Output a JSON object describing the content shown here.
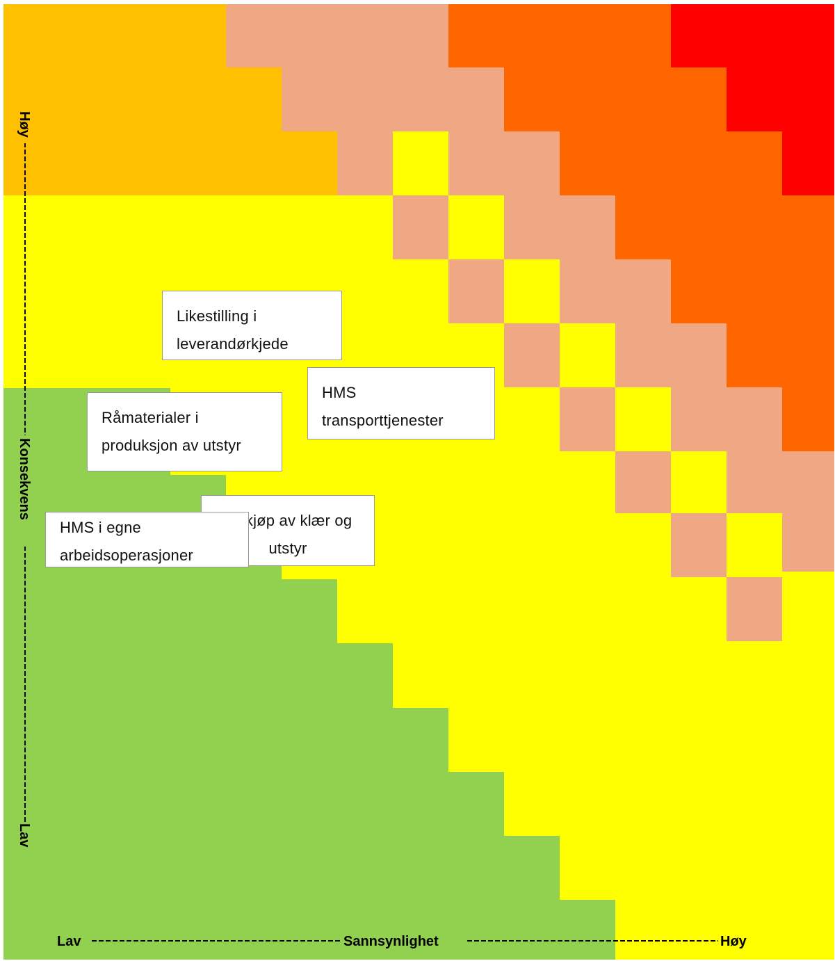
{
  "colors": {
    "green": "#92d050",
    "yellow": "#ffff00",
    "amber": "#ffc000",
    "salmon": "#f0a884",
    "orange": "#ff6600",
    "red": "#ff0000"
  },
  "axes": {
    "y": {
      "low": "Lav",
      "title": "Konsekvens",
      "high": "Høy"
    },
    "x": {
      "low": "Lav",
      "title": "Sannsynlighet",
      "high": "Høy"
    }
  },
  "risks": [
    {
      "id": "likestilling",
      "lines": [
        "Likestilling i",
        "leverandørkjede"
      ]
    },
    {
      "id": "hms-transport",
      "lines": [
        "HMS",
        "transporttjenester"
      ]
    },
    {
      "id": "ramaterialer",
      "lines": [
        "Råmaterialer i",
        "produksjon av utstyr"
      ]
    },
    {
      "id": "innkjop",
      "lines": [
        "Innkjøp av klær og",
        "utstyr"
      ]
    },
    {
      "id": "hms-egne",
      "lines": [
        "HMS i egne",
        "arbeidsoperasjoner"
      ]
    }
  ]
}
